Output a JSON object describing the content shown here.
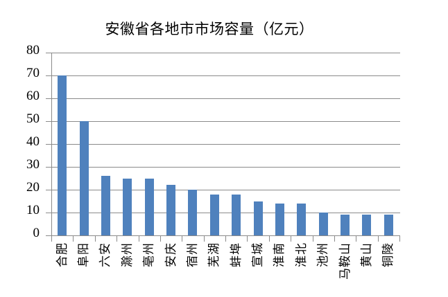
{
  "chart_data": {
    "type": "bar",
    "title": "安徽省各地市市场容量（亿元）",
    "categories": [
      "合肥",
      "阜阳",
      "六安",
      "滁州",
      "亳州",
      "安庆",
      "宿州",
      "芜湖",
      "蚌埠",
      "宣城",
      "淮南",
      "淮北",
      "池州",
      "马鞍山",
      "黄山",
      "铜陵"
    ],
    "values": [
      70,
      50,
      26,
      25,
      25,
      22,
      20,
      18,
      18,
      15,
      14,
      14,
      10,
      9,
      9,
      9
    ],
    "xlabel": "",
    "ylabel": "",
    "ylim": [
      0,
      80
    ],
    "ytick_step": 10,
    "ytick_labels": [
      "0",
      "10",
      "20",
      "30",
      "40",
      "50",
      "60",
      "70",
      "80"
    ],
    "grid": true,
    "legend": false,
    "bar_color": "#4f81bd",
    "axis_color": "#8a8a8a",
    "text_color": "#000000",
    "background_color": "#ffffff"
  }
}
